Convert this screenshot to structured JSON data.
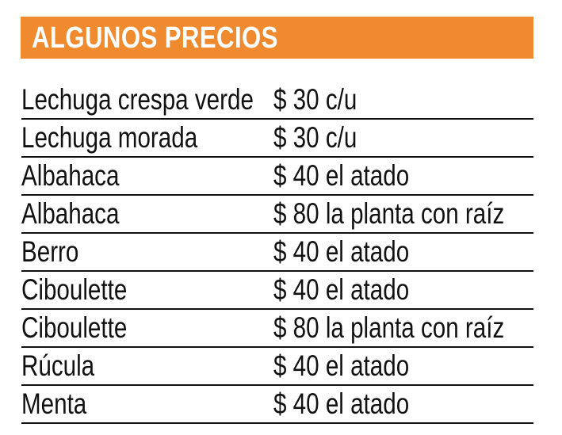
{
  "title": "ALGUNOS PRECIOS",
  "colors": {
    "header_bg": "#F08A2E",
    "header_text": "#FFFFFF",
    "text": "#111111"
  },
  "rows": [
    {
      "item": "Lechuga crespa verde",
      "price": "$ 30 c/u"
    },
    {
      "item": "Lechuga morada",
      "price": "$ 30 c/u"
    },
    {
      "item": "Albahaca",
      "price": "$ 40 el atado"
    },
    {
      "item": "Albahaca",
      "price": "$ 80 la planta con raíz"
    },
    {
      "item": "Berro",
      "price": "$ 40 el atado"
    },
    {
      "item": "Ciboulette",
      "price": "$ 40 el atado"
    },
    {
      "item": "Ciboulette",
      "price": "$ 80 la planta con raíz"
    },
    {
      "item": "Rúcula",
      "price": "$ 40 el atado"
    },
    {
      "item": "Menta",
      "price": "$ 40 el atado"
    }
  ]
}
